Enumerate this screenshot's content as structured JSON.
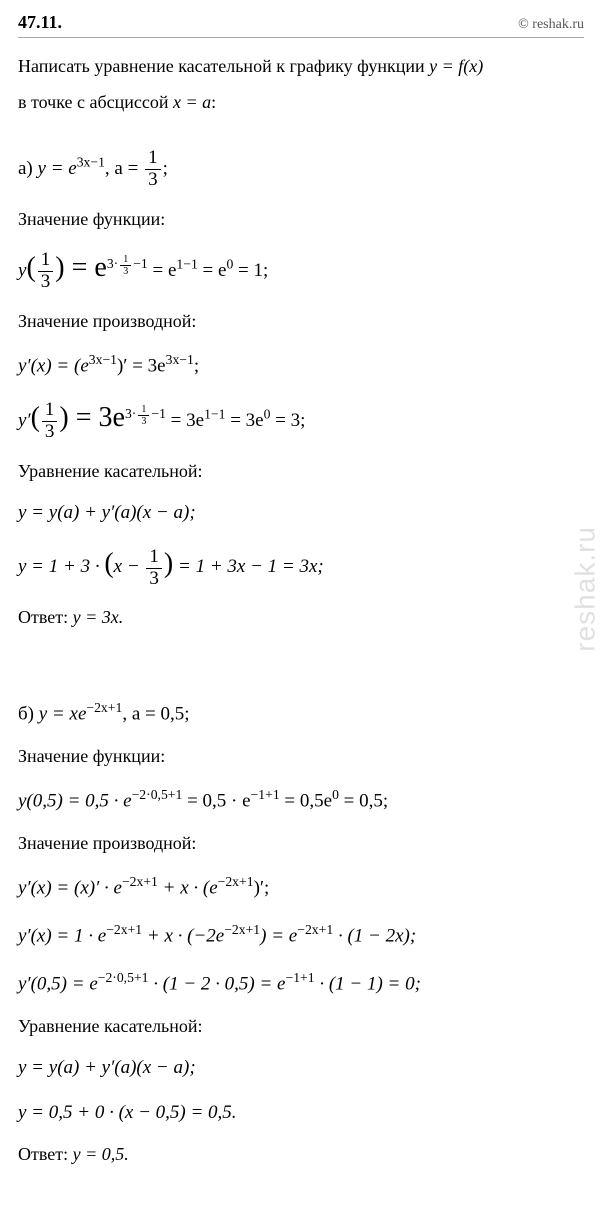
{
  "header": {
    "problem_number": "47.11.",
    "source": "© reshak.ru"
  },
  "prompt": {
    "line1_pre": "Написать уравнение касательной к графику функции ",
    "line1_f": "y = f(x)",
    "line2_pre": "в точке с абсциссой ",
    "line2_xa": "x = a",
    "line2_post": ":"
  },
  "watermark": "reshak.ru",
  "partA": {
    "header_pre": "а) ",
    "header_eq": "y = e",
    "header_exp": "3x−1",
    "header_sep": ",  a = ",
    "header_frac_num": "1",
    "header_frac_den": "3",
    "header_end": ";",
    "label_value": "Значение функции:",
    "y_val_lhs": "y",
    "y_val_open": "(",
    "y_val_fn": "1",
    "y_val_fd": "3",
    "y_val_close": ") = e",
    "y_val_e1": "3·",
    "y_val_e1_fn": "1",
    "y_val_e1_fd": "3",
    "y_val_e1_tail": "−1",
    "y_val_mid1": " = e",
    "y_val_e2": "1−1",
    "y_val_mid2": " = e",
    "y_val_e3": "0",
    "y_val_end": " = 1;",
    "label_deriv": "Значение производной:",
    "yp1_lhs": "y′(x) = (e",
    "yp1_e1": "3x−1",
    "yp1_mid": ")′ = 3e",
    "yp1_e2": "3x−1",
    "yp1_end": ";",
    "yp2_lhs": "y′",
    "yp2_open": "(",
    "yp2_fn": "1",
    "yp2_fd": "3",
    "yp2_close": ") = 3e",
    "yp2_e1a": "3·",
    "yp2_e1_fn": "1",
    "yp2_e1_fd": "3",
    "yp2_e1b": "−1",
    "yp2_mid1": " = 3e",
    "yp2_e2": "1−1",
    "yp2_mid2": " = 3e",
    "yp2_e3": "0",
    "yp2_end": " = 3;",
    "label_tangent": "Уравнение касательной:",
    "tan1": "y = y(a) + y′(a)(x − a);",
    "tan2_pre": "y = 1 + 3 · ",
    "tan2_open": "(",
    "tan2_x": "x − ",
    "tan2_fn": "1",
    "tan2_fd": "3",
    "tan2_close": ")",
    "tan2_end": " = 1 + 3x − 1 = 3x;",
    "answer_label": "Ответ: ",
    "answer_val": "y = 3x."
  },
  "partB": {
    "header_pre": "б) ",
    "header_eq": "y = xe",
    "header_exp": "−2x+1",
    "header_sep": ",  a = 0,5;",
    "label_value": "Значение функции:",
    "y_val_lhs": "y(0,5) = 0,5 · e",
    "y_val_e1": "−2·0,5+1",
    "y_val_mid1": " = 0,5 · e",
    "y_val_e2": "−1+1",
    "y_val_mid2": " = 0,5e",
    "y_val_e3": "0",
    "y_val_end": " = 0,5;",
    "label_deriv": "Значение производной:",
    "yp1_lhs": "y′(x) = (x)′ · e",
    "yp1_e1": "−2x+1",
    "yp1_mid": " + x · (e",
    "yp1_e2": "−2x+1",
    "yp1_end": ")′;",
    "yp2_lhs": "y′(x) = 1 · e",
    "yp2_e1": "−2x+1",
    "yp2_mid1": " + x · (−2e",
    "yp2_e2": "−2x+1",
    "yp2_mid2": ") = e",
    "yp2_e3": "−2x+1",
    "yp2_end": " · (1 − 2x);",
    "yp3_lhs": "y′(0,5) = e",
    "yp3_e1": "−2·0,5+1",
    "yp3_mid1": " · (1 − 2 · 0,5) = e",
    "yp3_e2": "−1+1",
    "yp3_end": " · (1 − 1) = 0;",
    "label_tangent": "Уравнение касательной:",
    "tan1": "y = y(a) + y′(a)(x − a);",
    "tan2": "y = 0,5 + 0 · (x − 0,5) = 0,5.",
    "answer_label": "Ответ: ",
    "answer_val": "y = 0,5."
  }
}
